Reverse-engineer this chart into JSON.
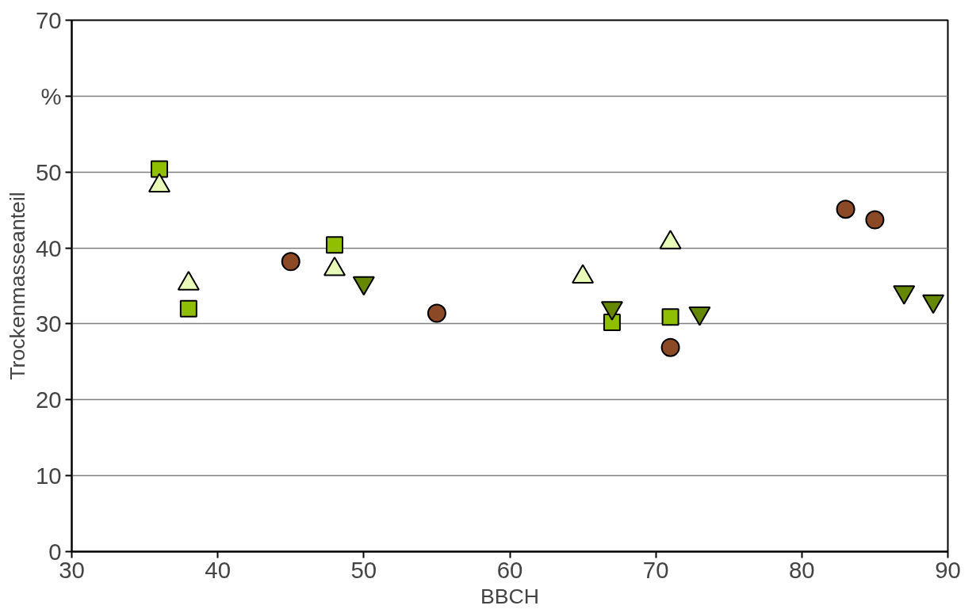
{
  "chart_data": {
    "type": "scatter",
    "xlabel": "BBCH",
    "ylabel": "Trockenmasseanteil",
    "xlim": [
      30,
      90
    ],
    "xticks": [
      30,
      40,
      50,
      60,
      70,
      80,
      90
    ],
    "ylim": [
      0,
      70
    ],
    "yticks": [
      0,
      10,
      20,
      30,
      40,
      50,
      {
        "value": 60,
        "label": "%"
      },
      70
    ],
    "grid": "y",
    "series": [
      {
        "color": "#8fbf00",
        "marker": "square",
        "x": [
          36,
          38,
          48,
          67,
          71
        ],
        "values": [
          50.4,
          32.0,
          40.4,
          30.2,
          30.9
        ]
      },
      {
        "color": "#8b4a25",
        "marker": "circle",
        "x": [
          45,
          55,
          71,
          83,
          85
        ],
        "values": [
          38.2,
          31.4,
          26.9,
          45.1,
          43.7
        ]
      },
      {
        "color": "#e9fbb9",
        "marker": "triangle",
        "x": [
          36,
          38,
          48,
          65,
          71
        ],
        "values": [
          48.2,
          35.3,
          37.2,
          36.2,
          40.7
        ]
      },
      {
        "color": "#658800",
        "x": [
          50,
          67,
          73,
          87,
          89
        ],
        "values": [
          35.4,
          32.1,
          31.4,
          34.2,
          33.0
        ]
      }
    ]
  }
}
